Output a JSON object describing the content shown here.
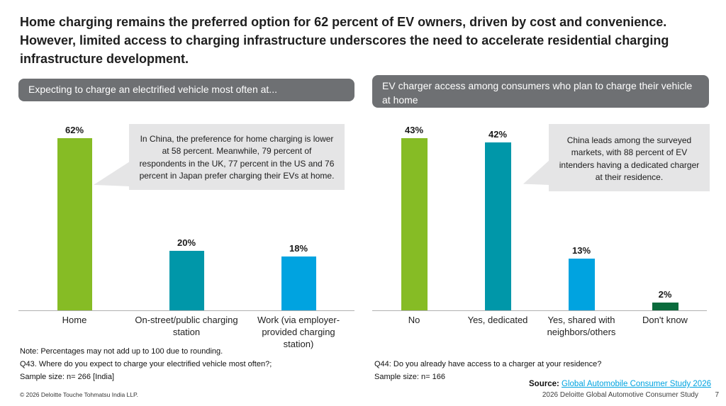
{
  "slide": {
    "title": "Home charging remains the preferred option for 62 percent of EV owners, driven by cost and convenience. However, limited access to charging infrastructure underscores the need to accelerate residential charging infrastructure development.",
    "footer_left": {
      "note": "Note: Percentages may not add up to 100 due to rounding.",
      "question": "Q43. Where do you expect to charge your electrified vehicle most often?;",
      "sample": "Sample size: n= 266 [India]",
      "copyright": "© 2026 Deloitte Touche Tohmatsu India LLP."
    },
    "footer_right": {
      "question": "Q44: Do you already have access to a charger at your residence?",
      "sample": "Sample size: n= 166",
      "source_label": "Source: ",
      "source_link": "Global Automobile Consumer Study 2026",
      "study": "2026 Deloitte Global Automotive Consumer Study",
      "page": "7"
    },
    "colors": {
      "green": "#86bc25",
      "teal": "#0097a9",
      "blue": "#00a3e0",
      "dark_green": "#0a6b3c",
      "header_gray": "#6e7073",
      "callout_gray": "#e5e5e6",
      "link_blue": "#00a3e0"
    }
  },
  "chart_data": [
    {
      "type": "bar",
      "title": "Expecting to charge an electrified vehicle most often at...",
      "categories": [
        "Home",
        "On-street/public charging station",
        "Work (via employer-provided charging station)"
      ],
      "values": [
        62,
        20,
        18
      ],
      "value_labels": [
        "62%",
        "20%",
        "18%"
      ],
      "colors": [
        "#86bc25",
        "#0097a9",
        "#00a3e0"
      ],
      "ylabel": "",
      "xlabel": "",
      "ylim": [
        0,
        65
      ],
      "grid": false,
      "legend": "none",
      "callout": "In China, the preference for home charging is lower at 58 percent. Meanwhile, 79 percent of respondents in the UK, 77 percent in the US and 76 percent in Japan prefer charging their EVs at home."
    },
    {
      "type": "bar",
      "title": "EV charger access among consumers who plan to charge their vehicle at home",
      "categories": [
        "No",
        "Yes, dedicated",
        "Yes, shared with neighbors/others",
        "Don't know"
      ],
      "values": [
        43,
        42,
        13,
        2
      ],
      "value_labels": [
        "43%",
        "42%",
        "13%",
        "2%"
      ],
      "colors": [
        "#86bc25",
        "#0097a9",
        "#00a3e0",
        "#0a6b3c"
      ],
      "ylabel": "",
      "xlabel": "",
      "ylim": [
        0,
        46
      ],
      "grid": false,
      "legend": "none",
      "callout": "China leads among the surveyed markets, with 88 percent of EV intenders having a dedicated charger at their residence."
    }
  ]
}
